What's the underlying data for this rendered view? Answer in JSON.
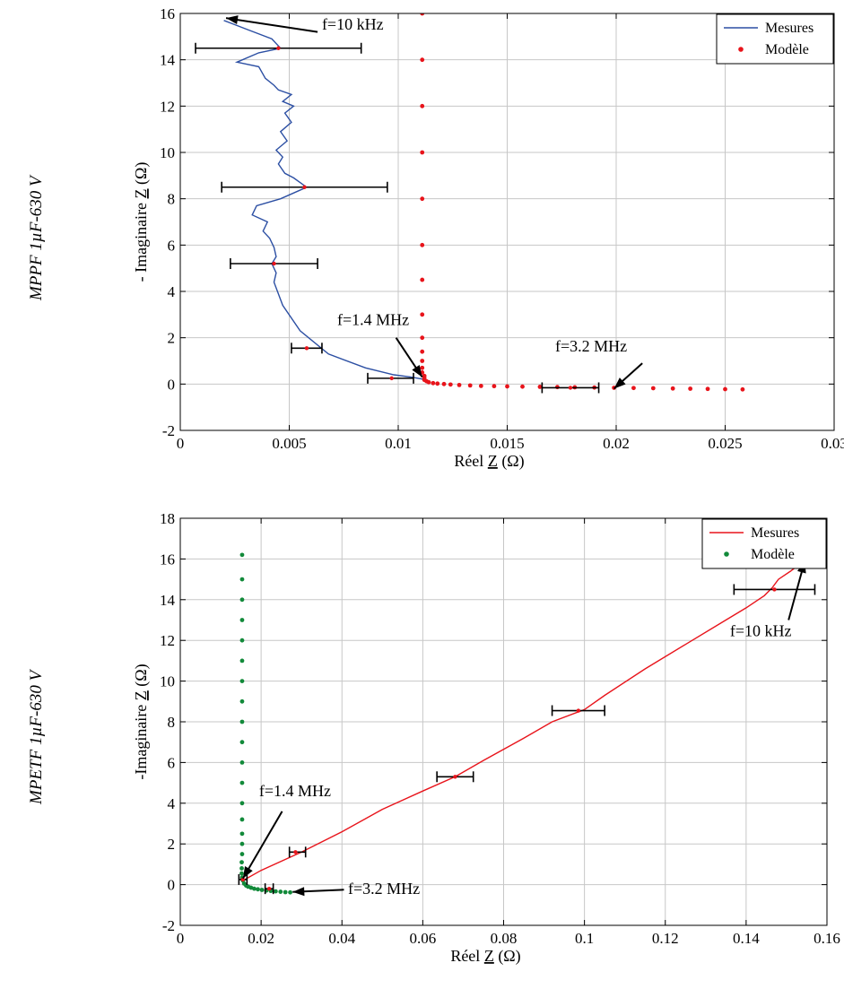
{
  "colors": {
    "blue": "#2c4fa3",
    "red": "#e8141b",
    "green": "#128a3a",
    "grid": "#c7c7c7",
    "black": "#000000"
  },
  "row_labels": [
    "MPPF 1µF-630 V",
    "MPETF 1µF-630 V"
  ],
  "chart_data": [
    {
      "type": "line",
      "xlabel": "Réel Z (Ω)",
      "ylabel": "- Imaginaire Z (Ω)",
      "xlim": [
        0,
        0.03
      ],
      "ylim": [
        -2,
        16
      ],
      "xticks": [
        0,
        0.005,
        0.01,
        0.015,
        0.02,
        0.025,
        0.03
      ],
      "xtick_labels": [
        "0",
        "0.005",
        "0.01",
        "0.015",
        "0.02",
        "0.025",
        "0.03"
      ],
      "yticks": [
        -2,
        0,
        2,
        4,
        6,
        8,
        10,
        12,
        14,
        16
      ],
      "ytick_labels": [
        "-2",
        "0",
        "2",
        "4",
        "6",
        "8",
        "10",
        "12",
        "14",
        "16"
      ],
      "grid": true,
      "legend_position": "top-right",
      "series": [
        {
          "name": "Mesures",
          "style": "line",
          "color": "#2c4fa3",
          "x": [
            0.002,
            0.0031,
            0.0042,
            0.0046,
            0.0036,
            0.0026,
            0.0036,
            0.0039,
            0.0043,
            0.0045,
            0.0051,
            0.0047,
            0.0052,
            0.0048,
            0.0051,
            0.0046,
            0.0049,
            0.0044,
            0.0047,
            0.0045,
            0.0048,
            0.0052,
            0.0058,
            0.0046,
            0.0035,
            0.0033,
            0.004,
            0.0038,
            0.0041,
            0.0043,
            0.0044,
            0.0042,
            0.0044,
            0.0043,
            0.0047,
            0.0055,
            0.0068,
            0.0085,
            0.0098,
            0.0106,
            0.0112
          ],
          "y": [
            15.7,
            15.3,
            14.9,
            14.5,
            14.3,
            13.9,
            13.7,
            13.2,
            12.9,
            12.7,
            12.5,
            12.2,
            12.0,
            11.7,
            11.3,
            10.9,
            10.5,
            10.1,
            9.8,
            9.5,
            9.1,
            8.9,
            8.5,
            8.0,
            7.7,
            7.3,
            7.0,
            6.6,
            6.3,
            5.9,
            5.5,
            5.2,
            4.8,
            4.4,
            3.4,
            2.3,
            1.3,
            0.7,
            0.4,
            0.3,
            0.2
          ]
        },
        {
          "name": "Modèle",
          "style": "dots",
          "color": "#e8141b",
          "x": [
            0.0111,
            0.0111,
            0.0111,
            0.0111,
            0.0111,
            0.0111,
            0.0111,
            0.0111,
            0.0111,
            0.0111,
            0.0111,
            0.0111,
            0.0111,
            0.0112,
            0.0112,
            0.0112,
            0.0113,
            0.0114,
            0.0116,
            0.0118,
            0.0121,
            0.0124,
            0.0128,
            0.0133,
            0.0138,
            0.0144,
            0.015,
            0.0157,
            0.0165,
            0.0173,
            0.0181,
            0.019,
            0.0199,
            0.0208,
            0.0217,
            0.0226,
            0.0234,
            0.0242,
            0.025,
            0.0258
          ],
          "y": [
            16.0,
            14.0,
            12.0,
            10.0,
            8.0,
            6.0,
            4.5,
            3.0,
            2.0,
            1.4,
            1.0,
            0.7,
            0.5,
            0.35,
            0.25,
            0.18,
            0.12,
            0.08,
            0.04,
            0.02,
            0.0,
            -0.02,
            -0.04,
            -0.06,
            -0.08,
            -0.09,
            -0.1,
            -0.11,
            -0.12,
            -0.13,
            -0.14,
            -0.15,
            -0.16,
            -0.17,
            -0.18,
            -0.19,
            -0.2,
            -0.21,
            -0.22,
            -0.23
          ]
        }
      ],
      "error_bars": [
        {
          "x": 0.0045,
          "y": 14.5,
          "xmin": 0.0007,
          "xmax": 0.0083
        },
        {
          "x": 0.0057,
          "y": 8.5,
          "xmin": 0.0019,
          "xmax": 0.0095
        },
        {
          "x": 0.0043,
          "y": 5.2,
          "xmin": 0.0023,
          "xmax": 0.0063
        },
        {
          "x": 0.0058,
          "y": 1.55,
          "xmin": 0.0051,
          "xmax": 0.0065
        },
        {
          "x": 0.0097,
          "y": 0.25,
          "xmin": 0.0086,
          "xmax": 0.0107
        },
        {
          "x": 0.0179,
          "y": -0.16,
          "xmin": 0.0166,
          "xmax": 0.0192
        }
      ],
      "annotations": [
        {
          "text": "f=10 kHz",
          "x": 0.0065,
          "y": 15.3,
          "arrow_from": [
            0.0063,
            15.2
          ],
          "arrow_to": [
            0.0021,
            15.8
          ]
        },
        {
          "text": "f=1.4 MHz",
          "x": 0.0072,
          "y": 2.55,
          "arrow_from": [
            0.0099,
            2.0
          ],
          "arrow_to": [
            0.0111,
            0.3
          ]
        },
        {
          "text": "f=3.2 MHz",
          "x": 0.0172,
          "y": 1.4,
          "arrow_from": [
            0.0212,
            0.9
          ],
          "arrow_to": [
            0.0199,
            -0.2
          ]
        }
      ]
    },
    {
      "type": "line",
      "xlabel": "Réel Z (Ω)",
      "ylabel": "-Imaginaire Z (Ω)",
      "xlim": [
        0,
        0.16
      ],
      "ylim": [
        -2,
        18
      ],
      "xticks": [
        0,
        0.02,
        0.04,
        0.06,
        0.08,
        0.1,
        0.12,
        0.14,
        0.16
      ],
      "xtick_labels": [
        "0",
        "0.02",
        "0.04",
        "0.06",
        "0.08",
        "0.1",
        "0.12",
        "0.14",
        "0.16"
      ],
      "yticks": [
        -2,
        0,
        2,
        4,
        6,
        8,
        10,
        12,
        14,
        16,
        18
      ],
      "ytick_labels": [
        "-2",
        "0",
        "2",
        "4",
        "6",
        "8",
        "10",
        "12",
        "14",
        "16",
        "18"
      ],
      "grid": true,
      "legend_position": "top-right",
      "series": [
        {
          "name": "Mesures",
          "style": "line",
          "color": "#e8141b",
          "x": [
            0.0155,
            0.02,
            0.03,
            0.04,
            0.05,
            0.06,
            0.068,
            0.075,
            0.085,
            0.092,
            0.1,
            0.105,
            0.115,
            0.125,
            0.135,
            0.14,
            0.1445,
            0.1465,
            0.148,
            0.151,
            0.153,
            0.1548
          ],
          "y": [
            0.2,
            0.7,
            1.6,
            2.6,
            3.7,
            4.6,
            5.3,
            6.1,
            7.2,
            8.0,
            8.6,
            9.3,
            10.6,
            11.8,
            13.0,
            13.6,
            14.2,
            14.6,
            15.0,
            15.4,
            15.7,
            15.9
          ]
        },
        {
          "name": "Modèle",
          "style": "dots",
          "color": "#128a3a",
          "x": [
            0.0153,
            0.0153,
            0.0153,
            0.0153,
            0.0153,
            0.0153,
            0.0153,
            0.0153,
            0.0153,
            0.0153,
            0.0153,
            0.0153,
            0.0153,
            0.0153,
            0.0153,
            0.0153,
            0.0153,
            0.0152,
            0.0152,
            0.0152,
            0.0153,
            0.0155,
            0.0158,
            0.0163,
            0.0168,
            0.0175,
            0.0183,
            0.0192,
            0.0202,
            0.0213,
            0.0224,
            0.0236,
            0.0248,
            0.026,
            0.0272
          ],
          "y": [
            16.2,
            15.0,
            14.0,
            13.0,
            12.0,
            11.0,
            10.0,
            9.0,
            8.0,
            7.0,
            6.0,
            5.0,
            4.0,
            3.2,
            2.5,
            2.0,
            1.5,
            1.1,
            0.8,
            0.55,
            0.35,
            0.2,
            0.05,
            -0.05,
            -0.1,
            -0.15,
            -0.2,
            -0.23,
            -0.26,
            -0.29,
            -0.31,
            -0.33,
            -0.35,
            -0.37,
            -0.38
          ]
        }
      ],
      "error_bars": [
        {
          "x": 0.147,
          "y": 14.5,
          "xmin": 0.137,
          "xmax": 0.157
        },
        {
          "x": 0.0985,
          "y": 8.55,
          "xmin": 0.092,
          "xmax": 0.105
        },
        {
          "x": 0.068,
          "y": 5.3,
          "xmin": 0.0635,
          "xmax": 0.0725
        },
        {
          "x": 0.0285,
          "y": 1.6,
          "xmin": 0.027,
          "xmax": 0.031
        },
        {
          "x": 0.0155,
          "y": 0.25,
          "xmin": 0.0145,
          "xmax": 0.0165
        },
        {
          "x": 0.022,
          "y": -0.2,
          "xmin": 0.021,
          "xmax": 0.023
        }
      ],
      "annotations": [
        {
          "text": "f=10 kHz",
          "x": 0.136,
          "y": 12.2,
          "arrow_from": [
            0.1505,
            13.0
          ],
          "arrow_to": [
            0.1545,
            15.9
          ]
        },
        {
          "text": "f=1.4 MHz",
          "x": 0.0195,
          "y": 4.35,
          "arrow_from": [
            0.0252,
            3.6
          ],
          "arrow_to": [
            0.0155,
            0.3
          ]
        },
        {
          "text": "f=3.2 MHz",
          "x": 0.0415,
          "y": -0.45,
          "arrow_from": [
            0.0405,
            -0.25
          ],
          "arrow_to": [
            0.0278,
            -0.36
          ]
        }
      ]
    }
  ]
}
